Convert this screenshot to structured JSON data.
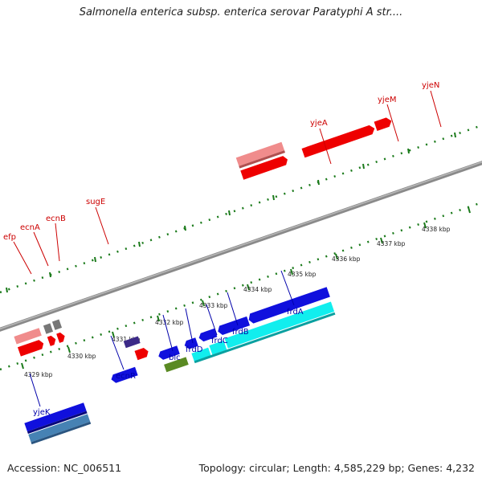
{
  "title": "Salmonella enterica subsp. enterica serovar Paratyphi A str....",
  "footer": {
    "accession": "Accession: NC_006511",
    "stats": "Topology: circular; Length: 4,585,229 bp; Genes: 4,232"
  },
  "colors": {
    "upper_gene": "#ee0000",
    "upper_gene_light": "#f08c8c",
    "upper_gene_gray": "#777777",
    "lower_gene": "#1010dd",
    "lower_gene_cyan": "#11eeee",
    "lower_gene_steel": "#4682b4",
    "lower_gene_dark": "#3c2a88",
    "lower_gene_olive": "#5a8a23",
    "label_top": "#cc0000",
    "label_bottom": "#0000aa",
    "tick": "#1a7a1a",
    "backbone": "#8a8a8a"
  },
  "scale": {
    "unit": "kbp",
    "ticks": [
      "4329 kbp",
      "4330 kbp",
      "4331 kbp",
      "4332 kbp",
      "4333 kbp",
      "4334 kbp",
      "4335 kbp",
      "4336 kbp",
      "4337 kbp",
      "4338 kbp"
    ]
  },
  "top_genes": [
    "efp",
    "ecnA",
    "ecnB",
    "sugE",
    "yjeA",
    "yjeM",
    "yjeN"
  ],
  "bottom_genes": [
    "yjeK",
    "ecnR",
    "blc",
    "frdD",
    "frdC",
    "frdB",
    "frdA"
  ]
}
